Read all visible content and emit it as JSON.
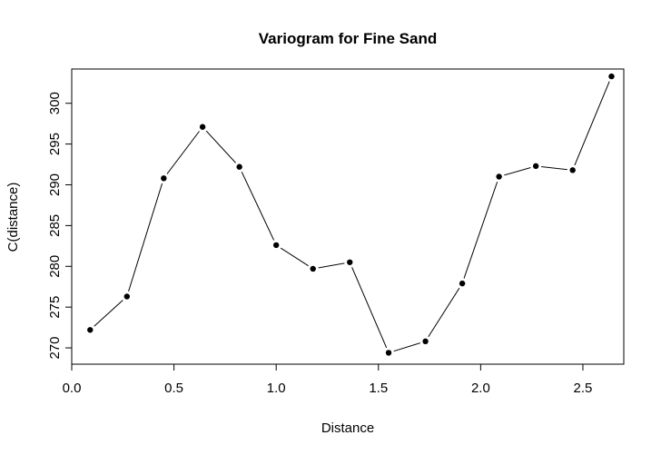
{
  "chart_data": {
    "type": "line",
    "title": "Variogram for Fine Sand",
    "xlabel": "Distance",
    "ylabel": "C(distance)",
    "xlim": [
      0.0,
      2.7
    ],
    "ylim": [
      268.0,
      304.2
    ],
    "xticks": [
      0.0,
      0.5,
      1.0,
      1.5,
      2.0,
      2.5
    ],
    "xtick_labels": [
      "0.0",
      "0.5",
      "1.0",
      "1.5",
      "2.0",
      "2.5"
    ],
    "yticks": [
      270,
      275,
      280,
      285,
      290,
      295,
      300
    ],
    "ytick_labels": [
      "270",
      "275",
      "280",
      "285",
      "290",
      "295",
      "300"
    ],
    "grid": false,
    "series": [
      {
        "x": [
          0.09,
          0.27,
          0.45,
          0.64,
          0.82,
          1.0,
          1.18,
          1.36,
          1.55,
          1.73,
          1.91,
          2.09,
          2.27,
          2.45,
          2.64
        ],
        "values": [
          272.2,
          276.3,
          290.8,
          297.1,
          292.2,
          282.6,
          279.7,
          280.5,
          269.4,
          270.8,
          277.9,
          291.0,
          292.3,
          291.8,
          303.3
        ]
      }
    ],
    "marker_color": "#000000",
    "line_color": "#000000"
  }
}
